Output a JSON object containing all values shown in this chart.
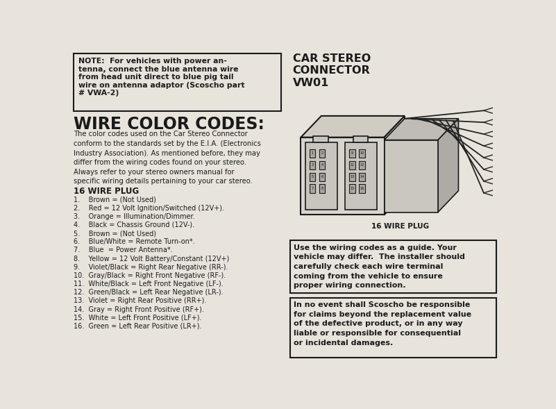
{
  "bg_color": "#e8e4dc",
  "text_color": "#1a1a1a",
  "note_box_text": "NOTE:  For vehicles with power an-\ntenna, connect the blue antenna wire\nfrom head unit direct to blue pig tail\nwire on antenna adaptor (Scoscho part\n# VWA-2)",
  "wire_color_codes_title": "WIRE COLOR CODES:",
  "wire_color_codes_body": "The color codes used on the Car Stereo Connector\nconform to the standards set by the E.I.A. (Electronics\nIndustry Association). As mentioned before, they may\ndiffer from the wiring codes found on your stereo.\nAlways refer to your stereo owners manual for\nspecific wiring details pertaining to your car stereo.",
  "plug_title": "16 WIRE PLUG",
  "wire_list": [
    "1.    Brown = (Not Used)",
    "2.    Red = 12 Volt Ignition/Switched (12V+).",
    "3.    Orange = Illumination/Dimmer.",
    "4.    Black = Chassis Ground (12V-).",
    "5.    Brown = (Not Used)",
    "6.    Blue/White = Remote Turn-on*.",
    "7.    Blue  = Power Antenna*.",
    "8.    Yellow = 12 Volt Battery/Constant (12V+)",
    "9.    Violet/Black = Right Rear Negative (RR-).",
    "10.  Gray/Black = Right Front Negative (RF-).",
    "11.  White/Black = Left Front Negative (LF-).",
    "12.  Green/Black = Left Rear Negative (LR-).",
    "13.  Violet = Right Rear Positive (RR+).",
    "14.  Gray = Right Front Positive (RF+).",
    "15.  White = Left Front Positive (LF+).",
    "16.  Green = Left Rear Positive (LR+)."
  ],
  "car_stereo_title": "CAR STEREO\nCONNECTOR\nVW01",
  "plug_label": "16 WIRE PLUG",
  "guide_box_text": "Use the wiring codes as a guide. Your\nvehicle may differ.  The installer should\ncarefully check each wire terminal\ncoming from the vehicle to ensure\nproper wiring connection.",
  "disclaimer_box_text": "In no event shall Scoscho be responsible\nfor claims beyond the replacement value\nof the defective product, or in any way\nliable or responsible for consequential\nor incidental damages."
}
